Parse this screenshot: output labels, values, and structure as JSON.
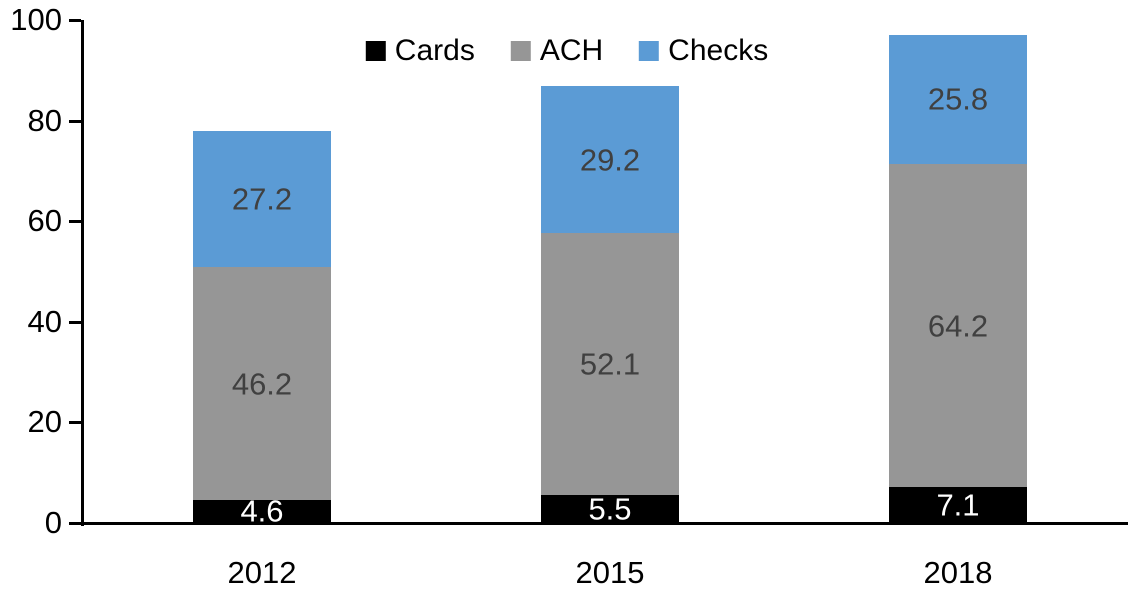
{
  "chart_data": {
    "type": "bar",
    "stacked": true,
    "title": "",
    "categories": [
      "2012",
      "2015",
      "2018"
    ],
    "series": [
      {
        "name": "Cards",
        "color": "#000000",
        "label_color": "#FFFFFF",
        "values": [
          4.6,
          5.5,
          7.1
        ]
      },
      {
        "name": "ACH",
        "color": "#969696",
        "label_color": "#404040",
        "values": [
          46.2,
          52.1,
          64.2
        ]
      },
      {
        "name": "Checks",
        "color": "#5B9BD5",
        "label_color": "#404040",
        "values": [
          27.2,
          29.2,
          25.8
        ]
      }
    ],
    "ylim": [
      0,
      100
    ],
    "yticks": [
      0,
      20,
      40,
      60,
      80,
      100
    ],
    "grid": false,
    "legend_position": "top",
    "axis_color": "#000000",
    "tick_label_color": "#000000",
    "background": "#FFFFFF"
  }
}
